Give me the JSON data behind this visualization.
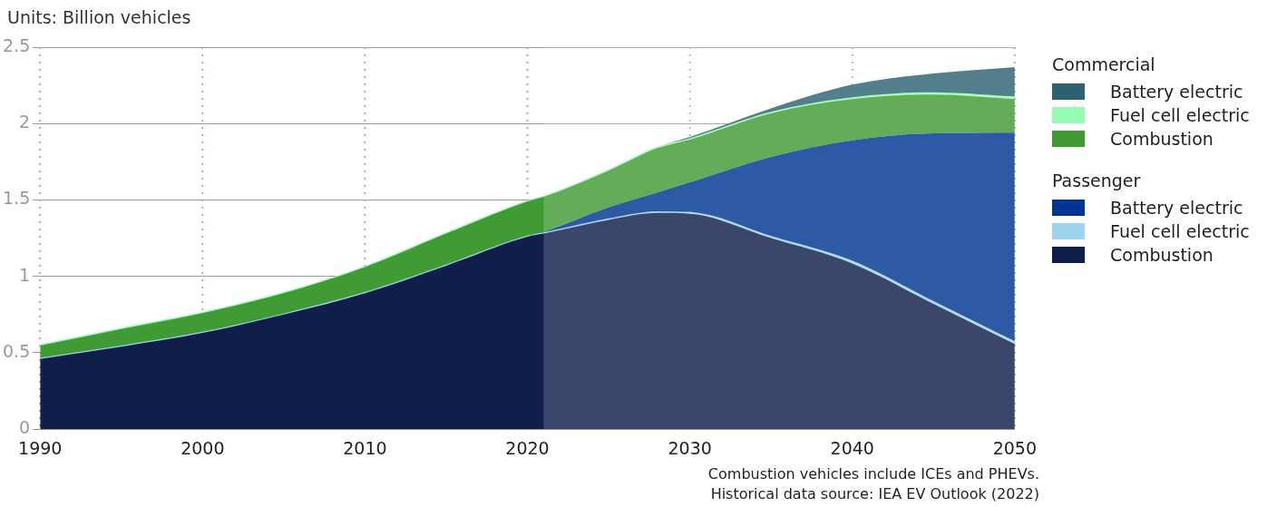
{
  "chart_data": {
    "type": "area",
    "stacked": true,
    "ylabel": "Units: Billion vehicles",
    "legend_title": [
      "Commercial",
      "Passenger"
    ],
    "x": [
      1990,
      1995,
      2000,
      2005,
      2010,
      2015,
      2020,
      2021,
      2025,
      2028,
      2030,
      2035,
      2040,
      2045,
      2050
    ],
    "series": [
      {
        "name": "Combustion",
        "color": "#0f1f4a",
        "values": [
          0.46,
          0.54,
          0.63,
          0.75,
          0.89,
          1.07,
          1.26,
          1.28,
          1.37,
          1.415,
          1.41,
          1.25,
          1.085,
          0.82,
          0.557
        ]
      },
      {
        "name": "Fuel cell electric",
        "color": "#9dd5ee",
        "values": [
          0,
          0,
          0,
          0,
          0,
          0,
          0,
          0,
          0.002,
          0.004,
          0.005,
          0.007,
          0.01,
          0.01,
          0.01
        ]
      },
      {
        "name": "Battery electric",
        "color": "#003591",
        "values": [
          0,
          0,
          0,
          0,
          0,
          0,
          0,
          0.01,
          0.08,
          0.13,
          0.2,
          0.525,
          0.795,
          1.106,
          1.373
        ]
      },
      {
        "name": "Combustion",
        "color": "#419b34",
        "values": [
          0.087,
          0.116,
          0.13,
          0.14,
          0.17,
          0.21,
          0.23,
          0.23,
          0.24,
          0.29,
          0.28,
          0.285,
          0.27,
          0.254,
          0.22
        ]
      },
      {
        "name": "Fuel cell electric",
        "color": "#95fab4",
        "values": [
          0,
          0,
          0,
          0,
          0,
          0,
          0,
          0,
          0.001,
          0.002,
          0.002,
          0.003,
          0.005,
          0.008,
          0.01
        ]
      },
      {
        "name": "Battery electric",
        "color": "#2e6272",
        "values": [
          0,
          0,
          0,
          0,
          0,
          0,
          0,
          0,
          0,
          0.005,
          0.015,
          0.03,
          0.09,
          0.13,
          0.2
        ]
      }
    ],
    "xlim": [
      1990,
      2050
    ],
    "xticks": [
      1990,
      2000,
      2010,
      2020,
      2030,
      2040,
      2050
    ],
    "ylim": [
      0,
      2.5
    ],
    "yticks": [
      0,
      0.5,
      1,
      1.5,
      2,
      2.5
    ],
    "grid": true,
    "legend": "right",
    "bands": [
      {
        "axis": "x",
        "from": 2021,
        "to": 2050,
        "color": "#ffffff"
      }
    ],
    "annotations": [
      "Combustion vehicles include ICEs and PHEVs.",
      "Historical data source: IEA EV Outlook (2022)"
    ]
  }
}
